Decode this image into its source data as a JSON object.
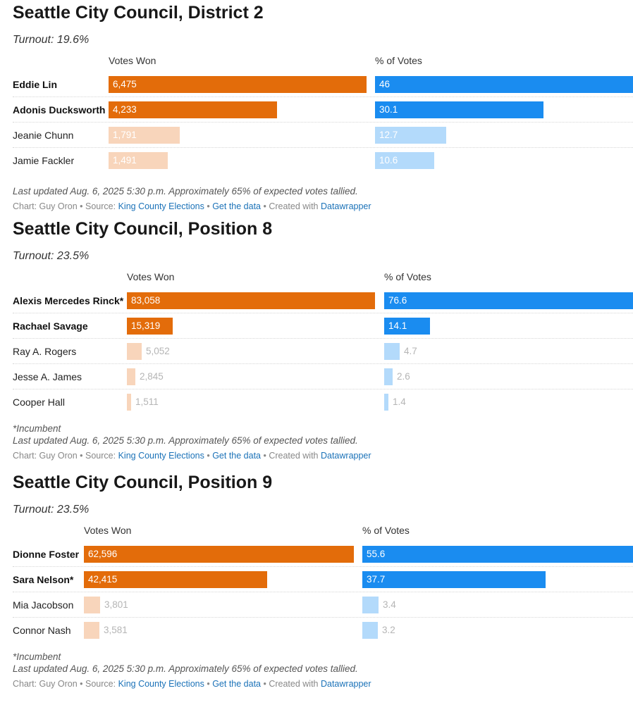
{
  "colors": {
    "votes_winner": "#e36c0a",
    "votes_other": "#f8d5bb",
    "pct_winner": "#1a8cf0",
    "pct_other": "#b3dafb"
  },
  "chart_data": [
    {
      "type": "bar",
      "title": "Seattle City Council, District 2",
      "turnout": "Turnout: 19.6%",
      "columns": [
        "Votes Won",
        "% of Votes"
      ],
      "candidates": [
        {
          "name": "Eddie Lin",
          "votes": 6475,
          "votes_label": "6,475",
          "pct": 46,
          "pct_label": "46",
          "winner": true
        },
        {
          "name": "Adonis Ducksworth",
          "votes": 4233,
          "votes_label": "4,233",
          "pct": 30.1,
          "pct_label": "30.1",
          "winner": true
        },
        {
          "name": "Jeanie Chunn",
          "votes": 1791,
          "votes_label": "1,791",
          "pct": 12.7,
          "pct_label": "12.7",
          "winner": false
        },
        {
          "name": "Jamie Fackler",
          "votes": 1491,
          "votes_label": "1,491",
          "pct": 10.6,
          "pct_label": "10.6",
          "winner": false
        }
      ],
      "footnotes": [
        "Last updated Aug. 6, 2025 5:30 p.m. Approximately 65% of expected votes tallied."
      ]
    },
    {
      "type": "bar",
      "title": "Seattle City Council, Position 8",
      "turnout": "Turnout: 23.5%",
      "columns": [
        "Votes Won",
        "% of Votes"
      ],
      "candidates": [
        {
          "name": "Alexis Mercedes Rinck*",
          "votes": 83058,
          "votes_label": "83,058",
          "pct": 76.6,
          "pct_label": "76.6",
          "winner": true
        },
        {
          "name": "Rachael Savage",
          "votes": 15319,
          "votes_label": "15,319",
          "pct": 14.1,
          "pct_label": "14.1",
          "winner": true
        },
        {
          "name": "Ray A. Rogers",
          "votes": 5052,
          "votes_label": "5,052",
          "pct": 4.7,
          "pct_label": "4.7",
          "winner": false
        },
        {
          "name": "Jesse A. James",
          "votes": 2845,
          "votes_label": "2,845",
          "pct": 2.6,
          "pct_label": "2.6",
          "winner": false
        },
        {
          "name": "Cooper Hall",
          "votes": 1511,
          "votes_label": "1,511",
          "pct": 1.4,
          "pct_label": "1.4",
          "winner": false
        }
      ],
      "footnotes": [
        "*Incumbent",
        "Last updated Aug. 6, 2025 5:30 p.m. Approximately 65% of expected votes tallied."
      ]
    },
    {
      "type": "bar",
      "title": "Seattle City Council, Position 9",
      "turnout": "Turnout: 23.5%",
      "columns": [
        "Votes Won",
        "% of Votes"
      ],
      "candidates": [
        {
          "name": "Dionne Foster",
          "votes": 62596,
          "votes_label": "62,596",
          "pct": 55.6,
          "pct_label": "55.6",
          "winner": true
        },
        {
          "name": "Sara Nelson*",
          "votes": 42415,
          "votes_label": "42,415",
          "pct": 37.7,
          "pct_label": "37.7",
          "winner": true
        },
        {
          "name": "Mia Jacobson",
          "votes": 3801,
          "votes_label": "3,801",
          "pct": 3.4,
          "pct_label": "3.4",
          "winner": false
        },
        {
          "name": "Connor Nash",
          "votes": 3581,
          "votes_label": "3,581",
          "pct": 3.2,
          "pct_label": "3.2",
          "winner": false
        }
      ],
      "footnotes": [
        "*Incumbent",
        "Last updated Aug. 6, 2025 5:30 p.m. Approximately 65% of expected votes tallied."
      ]
    }
  ],
  "credits": {
    "prefix": "Chart: Guy Oron • Source: ",
    "source_link": "King County Elections",
    "sep1": " • ",
    "data_link": "Get the data",
    "sep2": " • Created with ",
    "tool_link": "Datawrapper"
  }
}
